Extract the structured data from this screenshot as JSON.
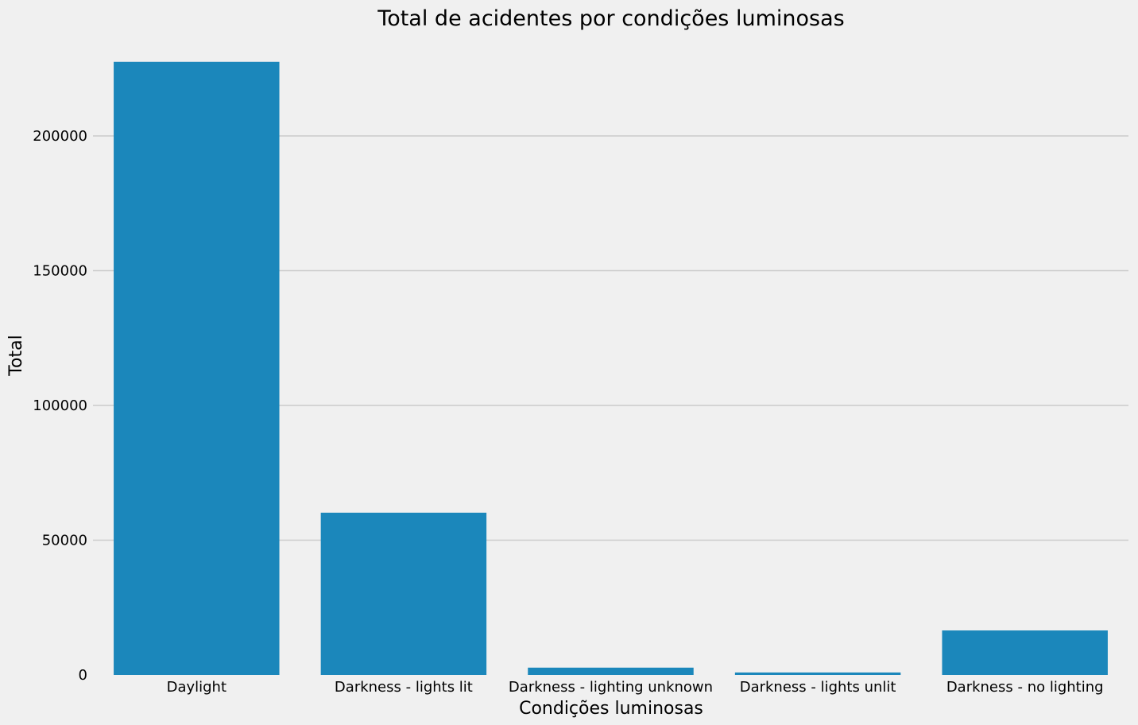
{
  "chart_data": {
    "type": "bar",
    "title": "Total de acidentes por condições luminosas",
    "xlabel": "Condições luminosas",
    "ylabel": "Total",
    "categories": [
      "Daylight",
      "Darkness - lights lit",
      "Darkness - lighting unknown",
      "Darkness - lights unlit",
      "Darkness - no lighting"
    ],
    "values": [
      227500,
      60200,
      2700,
      900,
      16500
    ],
    "yticks": [
      0,
      50000,
      100000,
      150000,
      200000
    ],
    "ylim": [
      0,
      238000
    ],
    "grid": "horizontal",
    "bar_color": "#1b87bb",
    "background_color": "#f0f0f0"
  }
}
